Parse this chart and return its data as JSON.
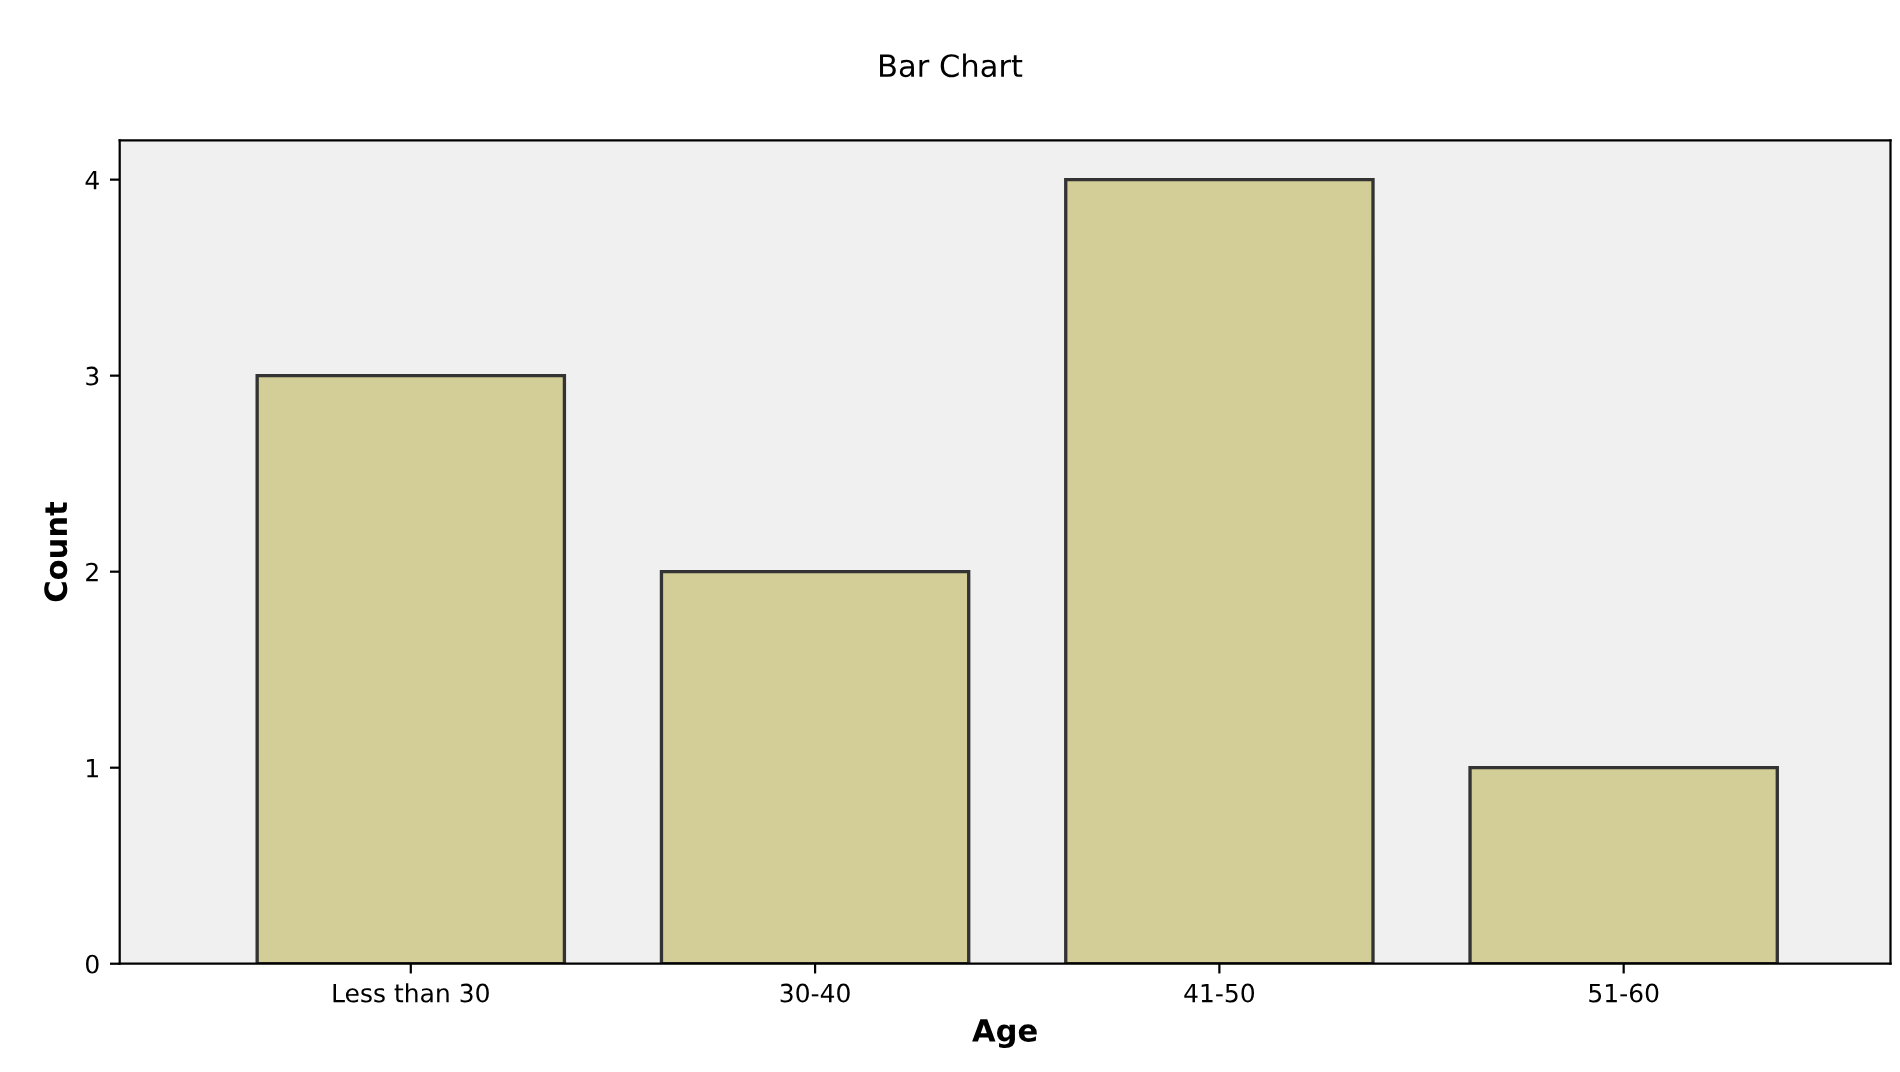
{
  "chart_data": {
    "type": "bar",
    "title": "Bar Chart",
    "xlabel": "Age",
    "ylabel": "Count",
    "categories": [
      "Less than 30",
      "30-40",
      "41-50",
      "51-60"
    ],
    "values": [
      3,
      2,
      4,
      1
    ],
    "color": "#d3ce97",
    "ylim": [
      0,
      4.2
    ],
    "yticks": [
      0,
      1,
      2,
      3,
      4
    ],
    "grid": false
  }
}
